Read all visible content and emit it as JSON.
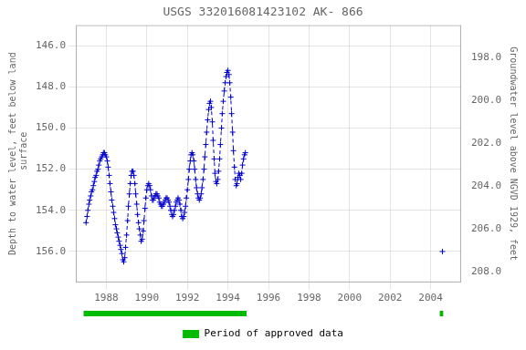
{
  "chart_data": {
    "type": "line",
    "title": "USGS 332016081423102 AK- 866",
    "y_label": "Depth to water level, feet below land\n surface",
    "y2_label": "Groundwater level above NGVD 1929, feet",
    "xlim": [
      1986.5,
      2005.5
    ],
    "xticks": [
      1988,
      1990,
      1992,
      1994,
      1996,
      1998,
      2000,
      2002,
      2004
    ],
    "ylim": [
      157.5,
      145.0
    ],
    "yticks": [
      {
        "value": 146.0,
        "label": "146.0"
      },
      {
        "value": 148.0,
        "label": "148.0"
      },
      {
        "value": 150.0,
        "label": "150.0"
      },
      {
        "value": 152.0,
        "label": "152.0"
      },
      {
        "value": 154.0,
        "label": "154.0"
      },
      {
        "value": 156.0,
        "label": "156.0"
      }
    ],
    "y2lim": [
      208.5,
      196.5
    ],
    "y2ticks": [
      {
        "value": 208.0,
        "label": "208.0"
      },
      {
        "value": 206.0,
        "label": "206.0"
      },
      {
        "value": 204.0,
        "label": "204.0"
      },
      {
        "value": 202.0,
        "label": "202.0"
      },
      {
        "value": 200.0,
        "label": "200.0"
      },
      {
        "value": 198.0,
        "label": "198.0"
      }
    ],
    "grid": true,
    "legend": "bottom",
    "series": [
      {
        "color": "#0000cc",
        "marker": "+",
        "line_style": "dashed",
        "x": [
          1987.0,
          1987.05,
          1987.09,
          1987.14,
          1987.18,
          1987.23,
          1987.27,
          1987.32,
          1987.36,
          1987.41,
          1987.45,
          1987.5,
          1987.54,
          1987.59,
          1987.63,
          1987.68,
          1987.72,
          1987.77,
          1987.82,
          1987.86,
          1987.91,
          1987.95,
          1988.0,
          1988.05,
          1988.09,
          1988.14,
          1988.18,
          1988.23,
          1988.27,
          1988.32,
          1988.36,
          1988.41,
          1988.45,
          1988.5,
          1988.54,
          1988.59,
          1988.63,
          1988.68,
          1988.72,
          1988.77,
          1988.82,
          1988.86,
          1988.91,
          1988.95,
          1989.0,
          1989.05,
          1989.09,
          1989.14,
          1989.18,
          1989.23,
          1989.27,
          1989.32,
          1989.36,
          1989.41,
          1989.45,
          1989.5,
          1989.54,
          1989.59,
          1989.63,
          1989.68,
          1989.72,
          1989.77,
          1989.82,
          1989.86,
          1989.91,
          1989.95,
          1990.0,
          1990.05,
          1990.09,
          1990.14,
          1990.18,
          1990.23,
          1990.27,
          1990.32,
          1990.36,
          1990.41,
          1990.45,
          1990.5,
          1990.54,
          1990.59,
          1990.63,
          1990.68,
          1990.72,
          1990.77,
          1990.82,
          1990.86,
          1990.91,
          1990.95,
          1991.0,
          1991.05,
          1991.09,
          1991.14,
          1991.18,
          1991.23,
          1991.27,
          1991.32,
          1991.36,
          1991.41,
          1991.45,
          1991.5,
          1991.54,
          1991.59,
          1991.63,
          1991.68,
          1991.72,
          1991.77,
          1991.82,
          1991.86,
          1991.91,
          1991.95,
          1992.0,
          1992.05,
          1992.09,
          1992.14,
          1992.18,
          1992.23,
          1992.27,
          1992.32,
          1992.36,
          1992.41,
          1992.45,
          1992.5,
          1992.54,
          1992.59,
          1992.63,
          1992.68,
          1992.72,
          1992.77,
          1992.82,
          1992.86,
          1992.91,
          1992.95,
          1993.0,
          1993.05,
          1993.09,
          1993.14,
          1993.18,
          1993.23,
          1993.27,
          1993.32,
          1993.36,
          1993.41,
          1993.45,
          1993.5,
          1993.54,
          1993.59,
          1993.63,
          1993.68,
          1993.72,
          1993.77,
          1993.82,
          1993.86,
          1993.91,
          1993.95,
          1994.0,
          1994.05,
          1994.09,
          1994.14,
          1994.18,
          1994.23,
          1994.27,
          1994.32,
          1994.36,
          1994.41,
          1994.45,
          1994.5,
          1994.54,
          1994.59,
          1994.63,
          1994.68,
          1994.72,
          1994.77,
          1994.82,
          1994.86
        ],
        "values": [
          154.6,
          154.3,
          154.0,
          153.7,
          153.5,
          153.3,
          153.1,
          153.0,
          152.8,
          152.6,
          152.4,
          152.3,
          152.1,
          152.0,
          151.8,
          151.6,
          151.5,
          151.4,
          151.3,
          151.2,
          151.2,
          151.3,
          151.4,
          151.6,
          151.9,
          152.3,
          152.7,
          153.1,
          153.5,
          153.8,
          154.1,
          154.4,
          154.7,
          154.9,
          155.1,
          155.3,
          155.5,
          155.7,
          155.9,
          156.1,
          156.4,
          156.5,
          156.3,
          155.8,
          155.2,
          154.5,
          153.8,
          153.2,
          152.7,
          152.3,
          152.1,
          152.1,
          152.3,
          152.7,
          153.2,
          153.7,
          154.2,
          154.6,
          154.9,
          155.2,
          155.5,
          155.4,
          155.0,
          154.5,
          153.9,
          153.4,
          153.0,
          152.8,
          152.7,
          152.8,
          153.0,
          153.3,
          153.5,
          153.5,
          153.4,
          153.3,
          153.2,
          153.2,
          153.3,
          153.4,
          153.6,
          153.7,
          153.8,
          153.8,
          153.7,
          153.6,
          153.5,
          153.4,
          153.4,
          153.5,
          153.6,
          153.8,
          154.0,
          154.2,
          154.3,
          154.2,
          154.0,
          153.8,
          153.6,
          153.5,
          153.4,
          153.5,
          153.7,
          154.0,
          154.3,
          154.4,
          154.3,
          154.1,
          153.8,
          153.4,
          153.0,
          152.5,
          152.0,
          151.6,
          151.3,
          151.2,
          151.3,
          151.6,
          152.0,
          152.5,
          152.9,
          153.2,
          153.4,
          153.5,
          153.4,
          153.2,
          152.9,
          152.5,
          152.0,
          151.4,
          150.8,
          150.2,
          149.6,
          149.1,
          148.8,
          148.7,
          149.0,
          149.7,
          150.6,
          151.5,
          152.2,
          152.6,
          152.7,
          152.5,
          152.1,
          151.5,
          150.8,
          150.0,
          149.3,
          148.7,
          148.2,
          147.8,
          147.5,
          147.3,
          147.2,
          147.4,
          147.8,
          148.5,
          149.3,
          150.2,
          151.1,
          151.9,
          152.5,
          152.8,
          152.7,
          152.4,
          152.2,
          152.3,
          152.5,
          152.2,
          151.8,
          151.5,
          151.3,
          151.2
        ]
      },
      {
        "color": "#0000cc",
        "marker": "+",
        "line_style": "none",
        "x": [
          2004.58
        ],
        "values": [
          156.0
        ]
      }
    ],
    "approved_periods": {
      "name": "Period of approved data",
      "color": "#00bb00",
      "ranges": [
        [
          1986.88,
          1994.92
        ],
        [
          2004.45,
          2004.62
        ]
      ]
    }
  }
}
